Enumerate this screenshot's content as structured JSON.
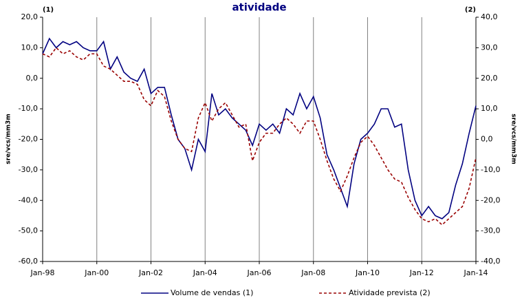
{
  "chart_data": {
    "type": "line",
    "title": "atividade",
    "left_axis_note": "(1)",
    "right_axis_note": "(2)",
    "ylabel": "sre/vcs/mm3m",
    "y2label": "sre/vcs/mm3m",
    "x": [
      "1998-01",
      "1998-04",
      "1998-07",
      "1998-10",
      "1999-01",
      "1999-04",
      "1999-07",
      "1999-10",
      "2000-01",
      "2000-04",
      "2000-07",
      "2000-10",
      "2001-01",
      "2001-04",
      "2001-07",
      "2001-10",
      "2002-01",
      "2002-04",
      "2002-07",
      "2002-10",
      "2003-01",
      "2003-04",
      "2003-07",
      "2003-10",
      "2004-01",
      "2004-04",
      "2004-07",
      "2004-10",
      "2005-01",
      "2005-04",
      "2005-07",
      "2005-10",
      "2006-01",
      "2006-04",
      "2006-07",
      "2006-10",
      "2007-01",
      "2007-04",
      "2007-07",
      "2007-10",
      "2008-01",
      "2008-04",
      "2008-07",
      "2008-10",
      "2009-01",
      "2009-04",
      "2009-07",
      "2009-10",
      "2010-01",
      "2010-04",
      "2010-07",
      "2010-10",
      "2011-01",
      "2011-04",
      "2011-07",
      "2011-10",
      "2012-01",
      "2012-04",
      "2012-07",
      "2012-10",
      "2013-01",
      "2013-04",
      "2013-07",
      "2013-10",
      "2014-01"
    ],
    "xlim": [
      "1998-01",
      "2014-01"
    ],
    "xticks": [
      {
        "value": "1998-01",
        "label": "Jan-98"
      },
      {
        "value": "2000-01",
        "label": "Jan-00"
      },
      {
        "value": "2002-01",
        "label": "Jan-02"
      },
      {
        "value": "2004-01",
        "label": "Jan-04"
      },
      {
        "value": "2006-01",
        "label": "Jan-06"
      },
      {
        "value": "2008-01",
        "label": "Jan-08"
      },
      {
        "value": "2010-01",
        "label": "Jan-10"
      },
      {
        "value": "2012-01",
        "label": "Jan-12"
      },
      {
        "value": "2014-01",
        "label": "Jan-14"
      }
    ],
    "ylim": [
      -60,
      20
    ],
    "yticks": [
      {
        "value": -60,
        "label": "-60,0"
      },
      {
        "value": -50,
        "label": "-50,0"
      },
      {
        "value": -40,
        "label": "-40,0"
      },
      {
        "value": -30,
        "label": "-30,0"
      },
      {
        "value": -20,
        "label": "-20,0"
      },
      {
        "value": -10,
        "label": "-10,0"
      },
      {
        "value": 0,
        "label": "0,0"
      },
      {
        "value": 10,
        "label": "10,0"
      },
      {
        "value": 20,
        "label": "20,0"
      }
    ],
    "y2lim": [
      -40,
      40
    ],
    "y2ticks": [
      {
        "value": -40,
        "label": "-40,0"
      },
      {
        "value": -30,
        "label": "-30,0"
      },
      {
        "value": -20,
        "label": "-20,0"
      },
      {
        "value": -10,
        "label": "-10,0"
      },
      {
        "value": 0,
        "label": "0,0"
      },
      {
        "value": 10,
        "label": "10,0"
      },
      {
        "value": 20,
        "label": "20,0"
      },
      {
        "value": 30,
        "label": "30,0"
      },
      {
        "value": 40,
        "label": "40,0"
      }
    ],
    "grid": "x",
    "series": [
      {
        "name": "Volume de vendas (1)",
        "color": "#000080",
        "dash": false,
        "axis": "y",
        "values": [
          8,
          13,
          10,
          12,
          11,
          12,
          10,
          9,
          9,
          12,
          3,
          7,
          2,
          0,
          -1,
          3,
          -5,
          -3,
          -3,
          -12,
          -20,
          -23,
          -30,
          -20,
          -24,
          -5,
          -12,
          -10,
          -13,
          -15,
          -17,
          -22,
          -15,
          -17,
          -15,
          -18,
          -10,
          -12,
          -5,
          -10,
          -6,
          -13,
          -25,
          -30,
          -36,
          -42,
          -28,
          -20,
          -18,
          -15,
          -10,
          -10,
          -16,
          -15,
          -30,
          -40,
          -45,
          -42,
          -45,
          -46,
          -44,
          -35,
          -28,
          -18,
          -9
        ]
      },
      {
        "name": "Atividade prevista (2)",
        "color": "#990000",
        "dash": true,
        "axis": "y2",
        "values": [
          28,
          27,
          30,
          28,
          29,
          27,
          26,
          28,
          28,
          24,
          23,
          21,
          19,
          19,
          18,
          13,
          11,
          16,
          14,
          6,
          0,
          -3,
          -4,
          7,
          12,
          6,
          10,
          12,
          8,
          4,
          5,
          -7,
          -1,
          2,
          2,
          5,
          7,
          5,
          2,
          6,
          6,
          0,
          -7,
          -13,
          -17,
          -12,
          -6,
          -1,
          1,
          -2,
          -6,
          -10,
          -13,
          -14,
          -19,
          -23,
          -26,
          -27,
          -26,
          -28,
          -26,
          -24,
          -22,
          -16,
          -6
        ]
      }
    ]
  }
}
